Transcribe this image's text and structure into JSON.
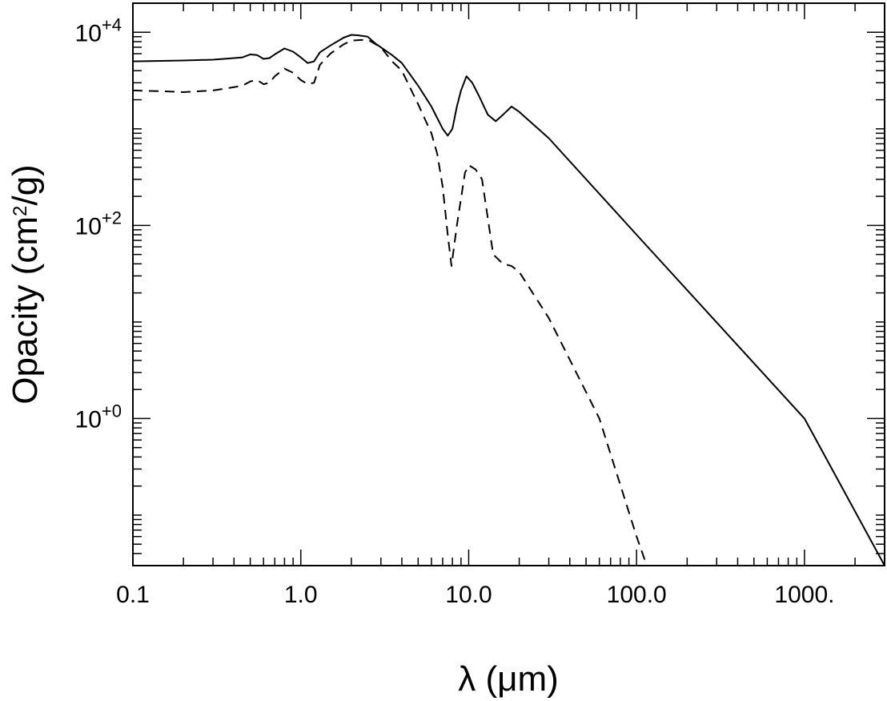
{
  "chart_data": {
    "type": "line",
    "x_scale": "log",
    "y_scale": "log",
    "xlim": [
      0.1,
      3000
    ],
    "ylim": [
      0.03,
      20000
    ],
    "xlabel": "λ (μm)",
    "ylabel": {
      "prefix": "Opacity (cm",
      "sup": "2",
      "suffix": "/g)"
    },
    "x_ticks": [
      {
        "value": 0.1,
        "label": "0.1"
      },
      {
        "value": 1,
        "label": "1.0"
      },
      {
        "value": 10,
        "label": "10.0"
      },
      {
        "value": 100,
        "label": "100.0"
      },
      {
        "value": 1000,
        "label": "1000."
      }
    ],
    "y_ticks": [
      {
        "value": 1,
        "base": "10",
        "exp": "+0"
      },
      {
        "value": 100,
        "base": "10",
        "exp": "+2"
      },
      {
        "value": 10000,
        "base": "10",
        "exp": "+4"
      }
    ],
    "grid": false,
    "series": [
      {
        "style": "solid",
        "points": [
          [
            0.1,
            5000
          ],
          [
            0.2,
            5100
          ],
          [
            0.3,
            5200
          ],
          [
            0.4,
            5400
          ],
          [
            0.45,
            5500
          ],
          [
            0.5,
            5900
          ],
          [
            0.55,
            5800
          ],
          [
            0.6,
            5300
          ],
          [
            0.65,
            5400
          ],
          [
            0.7,
            5900
          ],
          [
            0.8,
            6800
          ],
          [
            0.9,
            6300
          ],
          [
            1.0,
            5500
          ],
          [
            1.1,
            4800
          ],
          [
            1.2,
            5000
          ],
          [
            1.3,
            6200
          ],
          [
            1.5,
            7300
          ],
          [
            1.8,
            8800
          ],
          [
            2.0,
            9400
          ],
          [
            2.2,
            9300
          ],
          [
            2.5,
            9000
          ],
          [
            2.8,
            7600
          ],
          [
            3.5,
            5800
          ],
          [
            4.0,
            4800
          ],
          [
            5.0,
            2800
          ],
          [
            6.0,
            1700
          ],
          [
            7.0,
            1000
          ],
          [
            7.5,
            850
          ],
          [
            8.0,
            1000
          ],
          [
            8.5,
            1700
          ],
          [
            9.0,
            2500
          ],
          [
            9.7,
            3500
          ],
          [
            10.5,
            3000
          ],
          [
            11.5,
            2200
          ],
          [
            13.0,
            1400
          ],
          [
            14.5,
            1200
          ],
          [
            16.0,
            1400
          ],
          [
            18.0,
            1700
          ],
          [
            20.0,
            1500
          ],
          [
            30.0,
            800
          ],
          [
            100.0,
            80
          ],
          [
            1000.0,
            1.0
          ],
          [
            3000.0,
            0.03
          ]
        ]
      },
      {
        "style": "dashed",
        "points": [
          [
            0.1,
            2500
          ],
          [
            0.15,
            2450
          ],
          [
            0.2,
            2400
          ],
          [
            0.3,
            2500
          ],
          [
            0.4,
            2700
          ],
          [
            0.45,
            2800
          ],
          [
            0.5,
            3100
          ],
          [
            0.55,
            3200
          ],
          [
            0.6,
            2900
          ],
          [
            0.65,
            3000
          ],
          [
            0.7,
            3500
          ],
          [
            0.8,
            4200
          ],
          [
            0.9,
            3800
          ],
          [
            1.0,
            3200
          ],
          [
            1.1,
            2900
          ],
          [
            1.2,
            3000
          ],
          [
            1.3,
            4600
          ],
          [
            1.5,
            6000
          ],
          [
            1.8,
            7500
          ],
          [
            2.0,
            8200
          ],
          [
            2.5,
            8400
          ],
          [
            3.0,
            7000
          ],
          [
            3.5,
            5000
          ],
          [
            4.0,
            4000
          ],
          [
            5.0,
            1800
          ],
          [
            6.0,
            900
          ],
          [
            6.5,
            550
          ],
          [
            7.0,
            250
          ],
          [
            7.5,
            80
          ],
          [
            7.9,
            38
          ],
          [
            8.5,
            100
          ],
          [
            9.5,
            350
          ],
          [
            10.0,
            420
          ],
          [
            11.0,
            380
          ],
          [
            12.0,
            300
          ],
          [
            14.0,
            50
          ],
          [
            16.0,
            40
          ],
          [
            18.0,
            38
          ],
          [
            20.0,
            33
          ],
          [
            30.0,
            11
          ],
          [
            60.0,
            1.0
          ],
          [
            100.0,
            0.06
          ],
          [
            115.0,
            0.03
          ]
        ]
      }
    ]
  }
}
